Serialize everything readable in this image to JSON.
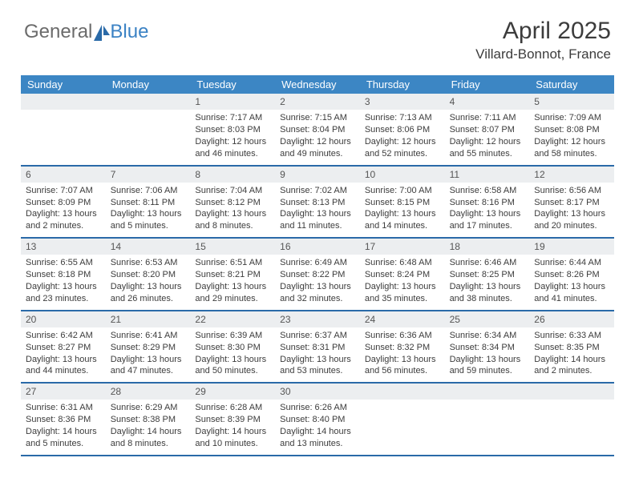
{
  "logo": {
    "text1": "General",
    "text2": "Blue"
  },
  "title": "April 2025",
  "location": "Villard-Bonnot, France",
  "colors": {
    "header_bg": "#3c86c4",
    "header_text": "#ffffff",
    "row_border": "#2a6aa8",
    "daynum_bg": "#eceef0",
    "body_text": "#3c3c3c",
    "logo_gray": "#6b6b6b",
    "logo_blue": "#3b82c4"
  },
  "day_names": [
    "Sunday",
    "Monday",
    "Tuesday",
    "Wednesday",
    "Thursday",
    "Friday",
    "Saturday"
  ],
  "weeks": [
    [
      {
        "n": "",
        "sr": "",
        "ss": "",
        "dl": ""
      },
      {
        "n": "",
        "sr": "",
        "ss": "",
        "dl": ""
      },
      {
        "n": "1",
        "sr": "Sunrise: 7:17 AM",
        "ss": "Sunset: 8:03 PM",
        "dl": "Daylight: 12 hours and 46 minutes."
      },
      {
        "n": "2",
        "sr": "Sunrise: 7:15 AM",
        "ss": "Sunset: 8:04 PM",
        "dl": "Daylight: 12 hours and 49 minutes."
      },
      {
        "n": "3",
        "sr": "Sunrise: 7:13 AM",
        "ss": "Sunset: 8:06 PM",
        "dl": "Daylight: 12 hours and 52 minutes."
      },
      {
        "n": "4",
        "sr": "Sunrise: 7:11 AM",
        "ss": "Sunset: 8:07 PM",
        "dl": "Daylight: 12 hours and 55 minutes."
      },
      {
        "n": "5",
        "sr": "Sunrise: 7:09 AM",
        "ss": "Sunset: 8:08 PM",
        "dl": "Daylight: 12 hours and 58 minutes."
      }
    ],
    [
      {
        "n": "6",
        "sr": "Sunrise: 7:07 AM",
        "ss": "Sunset: 8:09 PM",
        "dl": "Daylight: 13 hours and 2 minutes."
      },
      {
        "n": "7",
        "sr": "Sunrise: 7:06 AM",
        "ss": "Sunset: 8:11 PM",
        "dl": "Daylight: 13 hours and 5 minutes."
      },
      {
        "n": "8",
        "sr": "Sunrise: 7:04 AM",
        "ss": "Sunset: 8:12 PM",
        "dl": "Daylight: 13 hours and 8 minutes."
      },
      {
        "n": "9",
        "sr": "Sunrise: 7:02 AM",
        "ss": "Sunset: 8:13 PM",
        "dl": "Daylight: 13 hours and 11 minutes."
      },
      {
        "n": "10",
        "sr": "Sunrise: 7:00 AM",
        "ss": "Sunset: 8:15 PM",
        "dl": "Daylight: 13 hours and 14 minutes."
      },
      {
        "n": "11",
        "sr": "Sunrise: 6:58 AM",
        "ss": "Sunset: 8:16 PM",
        "dl": "Daylight: 13 hours and 17 minutes."
      },
      {
        "n": "12",
        "sr": "Sunrise: 6:56 AM",
        "ss": "Sunset: 8:17 PM",
        "dl": "Daylight: 13 hours and 20 minutes."
      }
    ],
    [
      {
        "n": "13",
        "sr": "Sunrise: 6:55 AM",
        "ss": "Sunset: 8:18 PM",
        "dl": "Daylight: 13 hours and 23 minutes."
      },
      {
        "n": "14",
        "sr": "Sunrise: 6:53 AM",
        "ss": "Sunset: 8:20 PM",
        "dl": "Daylight: 13 hours and 26 minutes."
      },
      {
        "n": "15",
        "sr": "Sunrise: 6:51 AM",
        "ss": "Sunset: 8:21 PM",
        "dl": "Daylight: 13 hours and 29 minutes."
      },
      {
        "n": "16",
        "sr": "Sunrise: 6:49 AM",
        "ss": "Sunset: 8:22 PM",
        "dl": "Daylight: 13 hours and 32 minutes."
      },
      {
        "n": "17",
        "sr": "Sunrise: 6:48 AM",
        "ss": "Sunset: 8:24 PM",
        "dl": "Daylight: 13 hours and 35 minutes."
      },
      {
        "n": "18",
        "sr": "Sunrise: 6:46 AM",
        "ss": "Sunset: 8:25 PM",
        "dl": "Daylight: 13 hours and 38 minutes."
      },
      {
        "n": "19",
        "sr": "Sunrise: 6:44 AM",
        "ss": "Sunset: 8:26 PM",
        "dl": "Daylight: 13 hours and 41 minutes."
      }
    ],
    [
      {
        "n": "20",
        "sr": "Sunrise: 6:42 AM",
        "ss": "Sunset: 8:27 PM",
        "dl": "Daylight: 13 hours and 44 minutes."
      },
      {
        "n": "21",
        "sr": "Sunrise: 6:41 AM",
        "ss": "Sunset: 8:29 PM",
        "dl": "Daylight: 13 hours and 47 minutes."
      },
      {
        "n": "22",
        "sr": "Sunrise: 6:39 AM",
        "ss": "Sunset: 8:30 PM",
        "dl": "Daylight: 13 hours and 50 minutes."
      },
      {
        "n": "23",
        "sr": "Sunrise: 6:37 AM",
        "ss": "Sunset: 8:31 PM",
        "dl": "Daylight: 13 hours and 53 minutes."
      },
      {
        "n": "24",
        "sr": "Sunrise: 6:36 AM",
        "ss": "Sunset: 8:32 PM",
        "dl": "Daylight: 13 hours and 56 minutes."
      },
      {
        "n": "25",
        "sr": "Sunrise: 6:34 AM",
        "ss": "Sunset: 8:34 PM",
        "dl": "Daylight: 13 hours and 59 minutes."
      },
      {
        "n": "26",
        "sr": "Sunrise: 6:33 AM",
        "ss": "Sunset: 8:35 PM",
        "dl": "Daylight: 14 hours and 2 minutes."
      }
    ],
    [
      {
        "n": "27",
        "sr": "Sunrise: 6:31 AM",
        "ss": "Sunset: 8:36 PM",
        "dl": "Daylight: 14 hours and 5 minutes."
      },
      {
        "n": "28",
        "sr": "Sunrise: 6:29 AM",
        "ss": "Sunset: 8:38 PM",
        "dl": "Daylight: 14 hours and 8 minutes."
      },
      {
        "n": "29",
        "sr": "Sunrise: 6:28 AM",
        "ss": "Sunset: 8:39 PM",
        "dl": "Daylight: 14 hours and 10 minutes."
      },
      {
        "n": "30",
        "sr": "Sunrise: 6:26 AM",
        "ss": "Sunset: 8:40 PM",
        "dl": "Daylight: 14 hours and 13 minutes."
      },
      {
        "n": "",
        "sr": "",
        "ss": "",
        "dl": ""
      },
      {
        "n": "",
        "sr": "",
        "ss": "",
        "dl": ""
      },
      {
        "n": "",
        "sr": "",
        "ss": "",
        "dl": ""
      }
    ]
  ]
}
